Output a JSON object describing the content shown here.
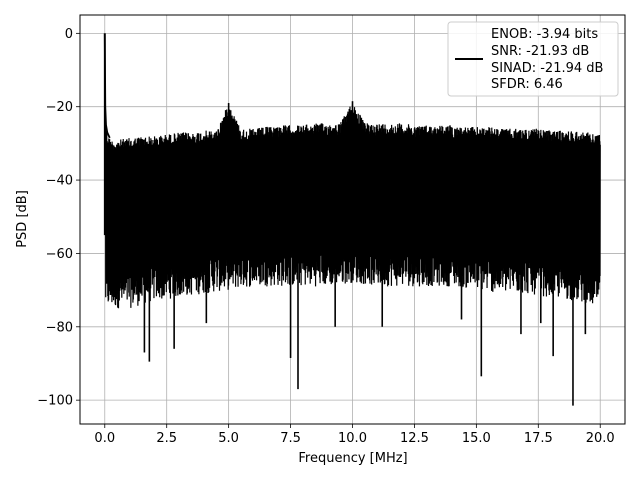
{
  "chart_data": {
    "type": "line",
    "title": "",
    "xlabel": "Frequency [MHz]",
    "ylabel": "PSD [dB]",
    "xlim": [
      -1.0,
      21.0
    ],
    "ylim": [
      -106.5,
      5.0
    ],
    "x_ticks": [
      0.0,
      2.5,
      5.0,
      7.5,
      10.0,
      12.5,
      15.0,
      17.5,
      20.0
    ],
    "x_tick_labels": [
      "0.0",
      "2.5",
      "5.0",
      "7.5",
      "10.0",
      "12.5",
      "15.0",
      "17.5",
      "20.0"
    ],
    "y_ticks": [
      0,
      -20,
      -40,
      -60,
      -80,
      -100
    ],
    "y_tick_labels": [
      "0",
      "−20",
      "−40",
      "−60",
      "−80",
      "−100"
    ],
    "grid": true,
    "legend_position": "upper right",
    "series": [
      {
        "name": "ENOB: -3.94 bits\nSNR: -21.93 dB\nSINAD: -21.94 dB\nSFDR: 6.46",
        "color": "#000000",
        "x": [
          0.0,
          0.02,
          0.05,
          0.1,
          0.2,
          0.3,
          0.5,
          1.0,
          1.5,
          2.0,
          2.5,
          3.0,
          3.5,
          4.0,
          4.5,
          5.0,
          5.5,
          6.0,
          6.5,
          7.0,
          7.5,
          8.0,
          8.5,
          9.0,
          9.5,
          10.0,
          10.5,
          11.0,
          11.5,
          12.0,
          12.5,
          13.0,
          13.5,
          14.0,
          14.5,
          15.0,
          15.5,
          16.0,
          16.5,
          17.0,
          17.5,
          18.0,
          18.5,
          19.0,
          19.5,
          20.0
        ],
        "y": [
          0.0,
          -20.0,
          -25.0,
          -27.0,
          -28.5,
          -29.0,
          -29.0,
          -28.5,
          -28.0,
          -28.0,
          -27.5,
          -27.0,
          -27.0,
          -26.5,
          -26.5,
          -19.0,
          -26.0,
          -26.0,
          -25.5,
          -25.0,
          -25.0,
          -25.0,
          -24.5,
          -24.5,
          -24.5,
          -18.5,
          -24.5,
          -24.5,
          -24.5,
          -24.5,
          -25.0,
          -25.0,
          -25.0,
          -25.0,
          -25.5,
          -25.5,
          -25.5,
          -26.0,
          -26.0,
          -26.0,
          -26.0,
          -26.5,
          -26.5,
          -26.5,
          -27.0,
          -27.5
        ]
      }
    ],
    "noise_floor": {
      "x": [
        0.1,
        1.0,
        2.0,
        3.0,
        4.0,
        5.0,
        6.0,
        7.0,
        8.0,
        9.0,
        10.0,
        11.0,
        12.0,
        13.0,
        14.0,
        15.0,
        16.0,
        17.0,
        18.0,
        19.0,
        20.0
      ],
      "y": [
        -70.0,
        -70.0,
        -68.0,
        -67.0,
        -66.0,
        -65.0,
        -64.0,
        -64.0,
        -64.0,
        -64.0,
        -63.0,
        -64.0,
        -64.0,
        -64.0,
        -64.0,
        -65.0,
        -66.0,
        -66.0,
        -67.0,
        -68.0,
        -70.0
      ]
    },
    "deep_nulls": {
      "x": [
        1.6,
        1.8,
        2.8,
        4.1,
        7.5,
        7.8,
        9.3,
        11.2,
        14.4,
        15.2,
        16.8,
        17.6,
        18.1,
        18.9,
        19.4
      ],
      "y": [
        -87.0,
        -89.5,
        -86.0,
        -79.0,
        -88.5,
        -97.0,
        -80.0,
        -80.0,
        -78.0,
        -93.5,
        -82.0,
        -79.0,
        -88.0,
        -101.5,
        -82.0
      ]
    }
  }
}
